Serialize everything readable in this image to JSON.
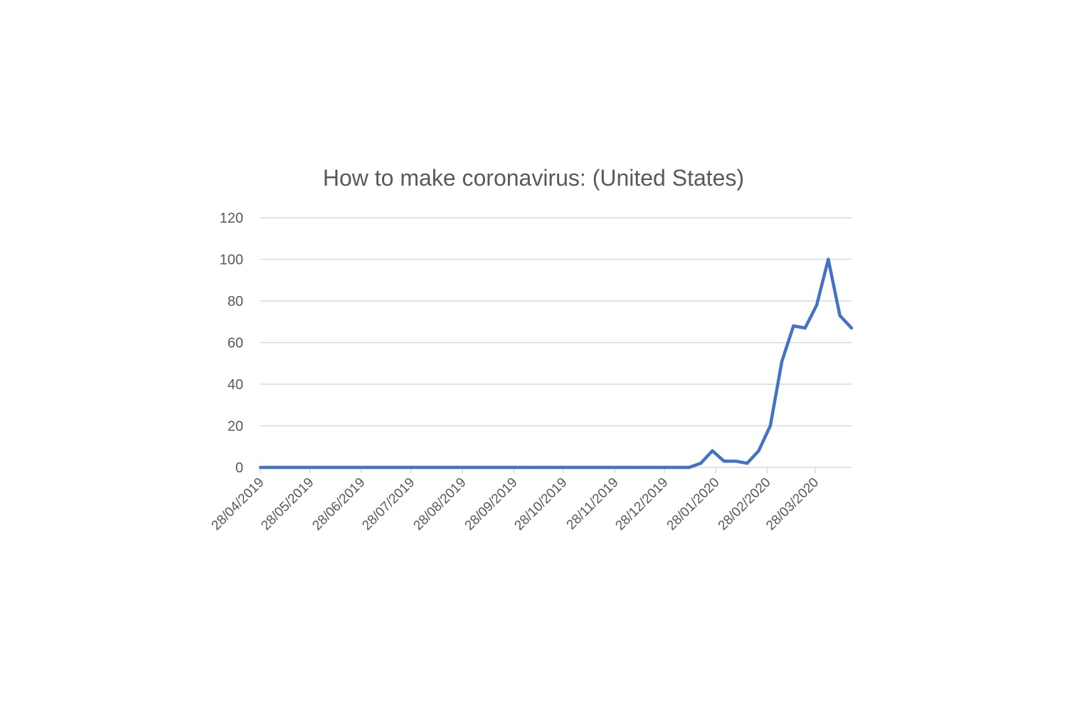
{
  "chart_data": {
    "type": "line",
    "title": "How to make coronavirus: (United States)",
    "xlabel": "",
    "ylabel": "",
    "ylim": [
      0,
      120
    ],
    "yticks": [
      0,
      20,
      40,
      60,
      80,
      100,
      120
    ],
    "xtick_labels": [
      "28/04/2019",
      "28/05/2019",
      "28/06/2019",
      "28/07/2019",
      "28/08/2019",
      "28/09/2019",
      "28/10/2019",
      "28/11/2019",
      "28/12/2019",
      "28/01/2020",
      "28/02/2020",
      "28/03/2020"
    ],
    "xtick_dates": [
      "2019-04-28",
      "2019-05-28",
      "2019-06-28",
      "2019-07-28",
      "2019-08-28",
      "2019-09-28",
      "2019-10-28",
      "2019-11-28",
      "2019-12-28",
      "2020-01-28",
      "2020-02-28",
      "2020-03-28"
    ],
    "grid": true,
    "series": [
      {
        "name": "How to make coronavirus: (United States)",
        "color": "#4472c4",
        "x": [
          "2019-04-28",
          "2019-05-05",
          "2019-05-12",
          "2019-05-19",
          "2019-05-26",
          "2019-06-02",
          "2019-06-09",
          "2019-06-16",
          "2019-06-23",
          "2019-06-30",
          "2019-07-07",
          "2019-07-14",
          "2019-07-21",
          "2019-07-28",
          "2019-08-04",
          "2019-08-11",
          "2019-08-18",
          "2019-08-25",
          "2019-09-01",
          "2019-09-08",
          "2019-09-15",
          "2019-09-22",
          "2019-09-29",
          "2019-10-06",
          "2019-10-13",
          "2019-10-20",
          "2019-10-27",
          "2019-11-03",
          "2019-11-10",
          "2019-11-17",
          "2019-11-24",
          "2019-12-01",
          "2019-12-08",
          "2019-12-15",
          "2019-12-22",
          "2019-12-29",
          "2020-01-05",
          "2020-01-12",
          "2020-01-19",
          "2020-01-26",
          "2020-02-02",
          "2020-02-09",
          "2020-02-16",
          "2020-02-23",
          "2020-03-01",
          "2020-03-08",
          "2020-03-15",
          "2020-03-22",
          "2020-03-29",
          "2020-04-05",
          "2020-04-12",
          "2020-04-19"
        ],
        "values": [
          0,
          0,
          0,
          0,
          0,
          0,
          0,
          0,
          0,
          0,
          0,
          0,
          0,
          0,
          0,
          0,
          0,
          0,
          0,
          0,
          0,
          0,
          0,
          0,
          0,
          0,
          0,
          0,
          0,
          0,
          0,
          0,
          0,
          0,
          0,
          0,
          0,
          0,
          2,
          8,
          3,
          3,
          2,
          8,
          20,
          51,
          68,
          67,
          78,
          100,
          73,
          67
        ]
      }
    ]
  }
}
